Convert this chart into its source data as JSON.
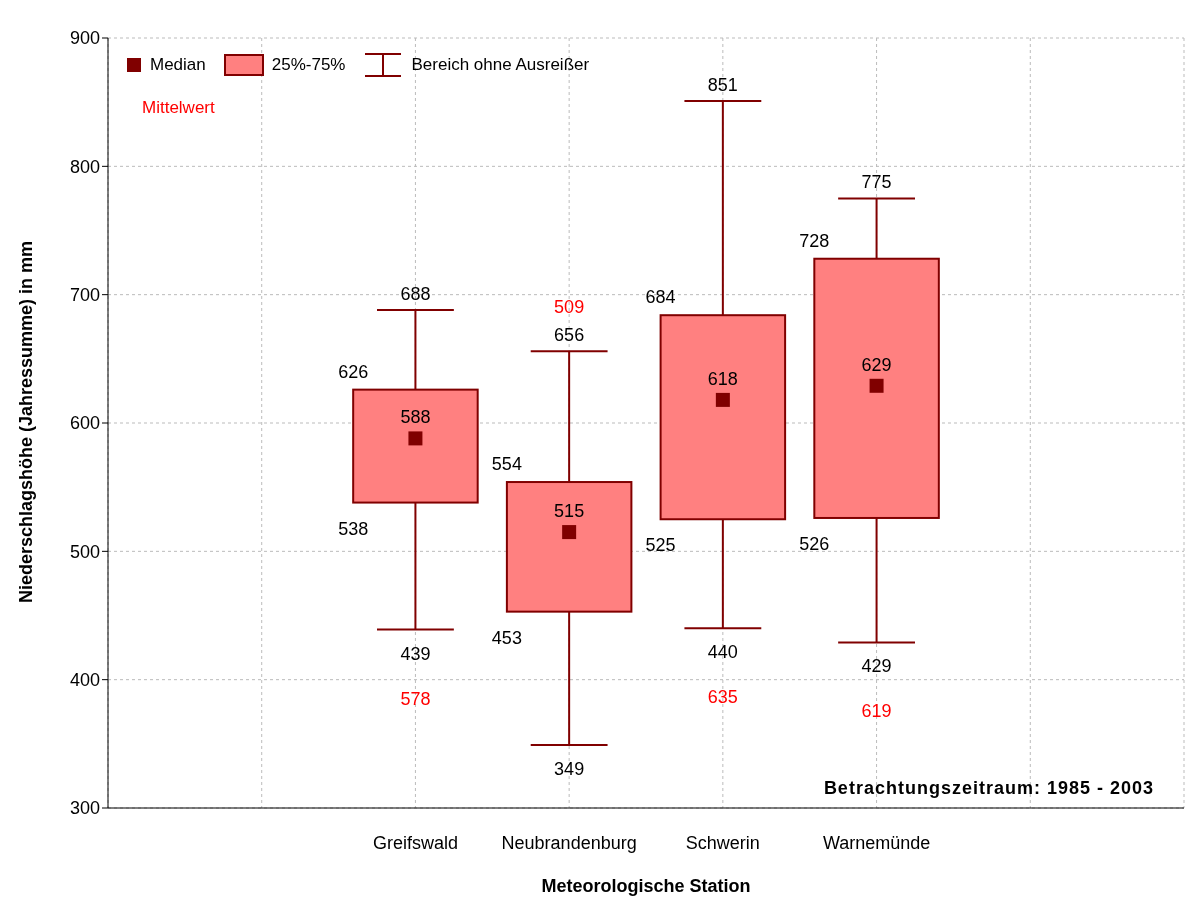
{
  "chart_data": {
    "type": "box",
    "xlabel": "Meteorologische Station",
    "ylabel": "Niederschlagshöhe (Jahressumme) in mm",
    "categories": [
      null,
      null,
      "Greifswald",
      "Neubrandenburg",
      "Schwerin",
      "Warnemünde",
      null,
      null
    ],
    "boxes": [
      null,
      null,
      {
        "low": 439,
        "q1": 538,
        "median": 588,
        "q3": 626,
        "high": 688
      },
      {
        "low": 349,
        "q1": 453,
        "median": 515,
        "q3": 554,
        "high": 656
      },
      {
        "low": 440,
        "q1": 525,
        "median": 618,
        "q3": 684,
        "high": 851
      },
      {
        "low": 429,
        "q1": 526,
        "median": 629,
        "q3": 728,
        "high": 775
      },
      null,
      null
    ],
    "color": "#ff8080",
    "ylim": [
      300,
      900
    ],
    "yticks": [
      300,
      400,
      500,
      600,
      700,
      800,
      900
    ],
    "grid": true,
    "annotations": [
      "Median",
      "25%-75%",
      "Bereich ohne Ausreißer",
      "Mittelwert",
      "Betrachtungszeitraum: 1985 - 2003",
      "578",
      "509",
      "635",
      "619",
      {
        "text": "688",
        "x": "Greifswald",
        "y": 688
      },
      {
        "text": "626",
        "x": "Greifswald",
        "y": 626
      },
      {
        "text": "588",
        "x": "Greifswald",
        "y": 588
      },
      {
        "text": "538",
        "x": "Greifswald",
        "y": 538
      },
      {
        "text": "439",
        "x": "Greifswald",
        "y": 439
      },
      {
        "text": "656",
        "x": "Neubrandenburg",
        "y": 656
      },
      {
        "text": "554",
        "x": "Neubrandenburg",
        "y": 554
      },
      {
        "text": "515",
        "x": "Neubrandenburg",
        "y": 515
      },
      {
        "text": "453",
        "x": "Neubrandenburg",
        "y": 453
      },
      {
        "text": "349",
        "x": "Neubrandenburg",
        "y": 349
      },
      {
        "text": "851",
        "x": "Schwerin",
        "y": 851
      },
      {
        "text": "684",
        "x": "Schwerin",
        "y": 684
      },
      {
        "text": "618",
        "x": "Schwerin",
        "y": 618
      },
      {
        "text": "525",
        "x": "Schwerin",
        "y": 525
      },
      {
        "text": "440",
        "x": "Schwerin",
        "y": 440
      },
      {
        "text": "775",
        "x": "Warnemünde",
        "y": 775
      },
      {
        "text": "728",
        "x": "Warnemünde",
        "y": 728
      },
      {
        "text": "629",
        "x": "Warnemünde",
        "y": 629
      },
      {
        "text": "526",
        "x": "Warnemünde",
        "y": 526
      },
      {
        "text": "429",
        "x": "Warnemünde",
        "y": 429
      }
    ]
  }
}
